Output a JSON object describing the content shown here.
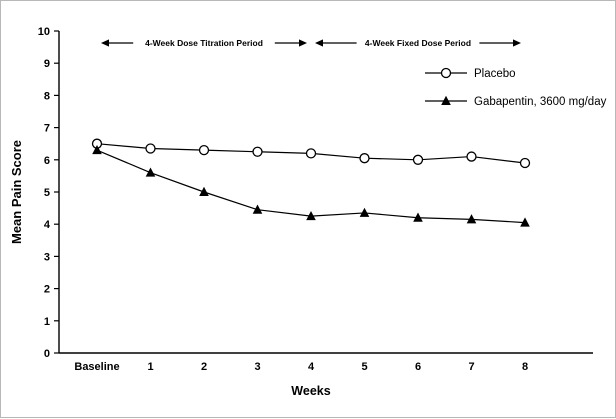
{
  "chart_data": {
    "type": "line",
    "title": "",
    "xlabel": "Weeks",
    "ylabel": "Mean Pain Score",
    "ylim": [
      0,
      10
    ],
    "yticks": [
      0,
      1,
      2,
      3,
      4,
      5,
      6,
      7,
      8,
      9,
      10
    ],
    "grid": false,
    "legend_position": "upper-right",
    "categories": [
      "Baseline",
      "1",
      "2",
      "3",
      "4",
      "5",
      "6",
      "7",
      "8"
    ],
    "series": [
      {
        "name": "Placebo",
        "marker": "circle-open",
        "color": "#000000",
        "values": [
          6.5,
          6.35,
          6.3,
          6.25,
          6.2,
          6.05,
          6.0,
          6.1,
          5.9
        ]
      },
      {
        "name": "Gabapentin, 3600 mg/day",
        "marker": "triangle-filled",
        "color": "#000000",
        "values": [
          6.3,
          5.6,
          5.0,
          4.45,
          4.25,
          4.35,
          4.2,
          4.15,
          4.05
        ]
      }
    ],
    "annotations": [
      {
        "label": "4-Week Dose Titration Period",
        "x_start": "Baseline",
        "x_end": "4"
      },
      {
        "label": "4-Week Fixed Dose Period",
        "x_start": "4",
        "x_end": "8"
      }
    ],
    "colors": {
      "line": "#000000",
      "background": "#ffffff"
    }
  }
}
